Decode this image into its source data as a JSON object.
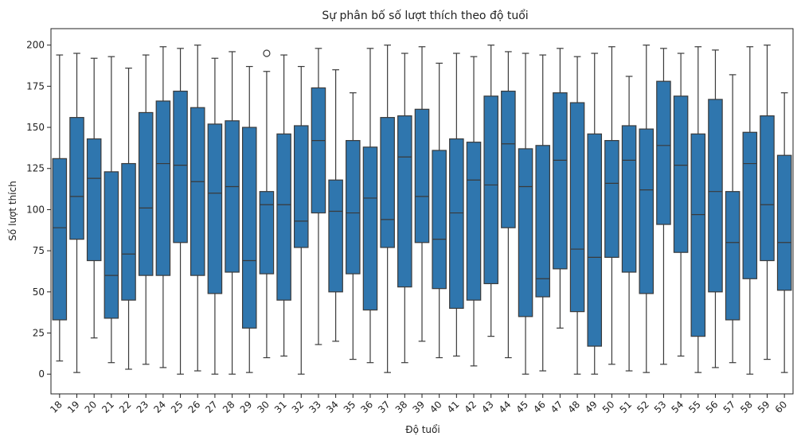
{
  "chart_data": {
    "type": "boxplot",
    "title": "Sự phân bố số lượt thích theo độ tuổi",
    "xlabel": "Độ tuổi",
    "ylabel": "Số lượt thích",
    "ylim": [
      -12,
      210
    ],
    "yticks": [
      0,
      25,
      50,
      75,
      100,
      125,
      150,
      175,
      200
    ],
    "grid": false,
    "box_color": "#2f76ae",
    "line_color": "#3a3a3a",
    "categories": [
      "18",
      "19",
      "20",
      "21",
      "22",
      "23",
      "24",
      "25",
      "26",
      "27",
      "28",
      "29",
      "30",
      "31",
      "32",
      "33",
      "34",
      "35",
      "36",
      "37",
      "38",
      "39",
      "40",
      "41",
      "42",
      "43",
      "44",
      "45",
      "46",
      "47",
      "48",
      "49",
      "50",
      "51",
      "52",
      "53",
      "54",
      "55",
      "56",
      "57",
      "58",
      "59",
      "60"
    ],
    "boxes": [
      {
        "whislo": 8,
        "q1": 33,
        "med": 89,
        "q3": 131,
        "whishi": 194,
        "fliers": []
      },
      {
        "whislo": 1,
        "q1": 82,
        "med": 108,
        "q3": 156,
        "whishi": 195,
        "fliers": []
      },
      {
        "whislo": 22,
        "q1": 69,
        "med": 119,
        "q3": 143,
        "whishi": 192,
        "fliers": []
      },
      {
        "whislo": 7,
        "q1": 34,
        "med": 60,
        "q3": 123,
        "whishi": 193,
        "fliers": []
      },
      {
        "whislo": 3,
        "q1": 45,
        "med": 73,
        "q3": 128,
        "whishi": 186,
        "fliers": []
      },
      {
        "whislo": 6,
        "q1": 60,
        "med": 101,
        "q3": 159,
        "whishi": 194,
        "fliers": []
      },
      {
        "whislo": 4,
        "q1": 60,
        "med": 128,
        "q3": 166,
        "whishi": 199,
        "fliers": []
      },
      {
        "whislo": 0,
        "q1": 80,
        "med": 127,
        "q3": 172,
        "whishi": 198,
        "fliers": []
      },
      {
        "whislo": 2,
        "q1": 60,
        "med": 117,
        "q3": 162,
        "whishi": 200,
        "fliers": []
      },
      {
        "whislo": 0,
        "q1": 49,
        "med": 110,
        "q3": 152,
        "whishi": 192,
        "fliers": []
      },
      {
        "whislo": 0,
        "q1": 62,
        "med": 114,
        "q3": 154,
        "whishi": 196,
        "fliers": []
      },
      {
        "whislo": 1,
        "q1": 28,
        "med": 69,
        "q3": 150,
        "whishi": 187,
        "fliers": []
      },
      {
        "whislo": 10,
        "q1": 61,
        "med": 103,
        "q3": 111,
        "whishi": 184,
        "fliers": [
          195
        ]
      },
      {
        "whislo": 11,
        "q1": 45,
        "med": 103,
        "q3": 146,
        "whishi": 194,
        "fliers": []
      },
      {
        "whislo": 0,
        "q1": 77,
        "med": 93,
        "q3": 151,
        "whishi": 187,
        "fliers": []
      },
      {
        "whislo": 18,
        "q1": 98,
        "med": 142,
        "q3": 174,
        "whishi": 198,
        "fliers": []
      },
      {
        "whislo": 20,
        "q1": 50,
        "med": 99,
        "q3": 118,
        "whishi": 185,
        "fliers": []
      },
      {
        "whislo": 9,
        "q1": 61,
        "med": 98,
        "q3": 142,
        "whishi": 171,
        "fliers": []
      },
      {
        "whislo": 7,
        "q1": 39,
        "med": 107,
        "q3": 138,
        "whishi": 198,
        "fliers": []
      },
      {
        "whislo": 1,
        "q1": 77,
        "med": 94,
        "q3": 156,
        "whishi": 200,
        "fliers": []
      },
      {
        "whislo": 7,
        "q1": 53,
        "med": 132,
        "q3": 157,
        "whishi": 195,
        "fliers": []
      },
      {
        "whislo": 20,
        "q1": 80,
        "med": 108,
        "q3": 161,
        "whishi": 199,
        "fliers": []
      },
      {
        "whislo": 10,
        "q1": 52,
        "med": 82,
        "q3": 136,
        "whishi": 189,
        "fliers": []
      },
      {
        "whislo": 11,
        "q1": 40,
        "med": 98,
        "q3": 143,
        "whishi": 195,
        "fliers": []
      },
      {
        "whislo": 5,
        "q1": 45,
        "med": 118,
        "q3": 141,
        "whishi": 193,
        "fliers": []
      },
      {
        "whislo": 23,
        "q1": 55,
        "med": 115,
        "q3": 169,
        "whishi": 200,
        "fliers": []
      },
      {
        "whislo": 10,
        "q1": 89,
        "med": 140,
        "q3": 172,
        "whishi": 196,
        "fliers": []
      },
      {
        "whislo": 0,
        "q1": 35,
        "med": 114,
        "q3": 137,
        "whishi": 195,
        "fliers": []
      },
      {
        "whislo": 2,
        "q1": 47,
        "med": 58,
        "q3": 139,
        "whishi": 194,
        "fliers": []
      },
      {
        "whislo": 28,
        "q1": 64,
        "med": 130,
        "q3": 171,
        "whishi": 198,
        "fliers": []
      },
      {
        "whislo": 0,
        "q1": 38,
        "med": 76,
        "q3": 165,
        "whishi": 193,
        "fliers": []
      },
      {
        "whislo": 0,
        "q1": 17,
        "med": 71,
        "q3": 146,
        "whishi": 195,
        "fliers": []
      },
      {
        "whislo": 6,
        "q1": 71,
        "med": 116,
        "q3": 142,
        "whishi": 199,
        "fliers": []
      },
      {
        "whislo": 2,
        "q1": 62,
        "med": 130,
        "q3": 151,
        "whishi": 181,
        "fliers": []
      },
      {
        "whislo": 1,
        "q1": 49,
        "med": 112,
        "q3": 149,
        "whishi": 200,
        "fliers": []
      },
      {
        "whislo": 6,
        "q1": 91,
        "med": 139,
        "q3": 178,
        "whishi": 198,
        "fliers": []
      },
      {
        "whislo": 11,
        "q1": 74,
        "med": 127,
        "q3": 169,
        "whishi": 195,
        "fliers": []
      },
      {
        "whislo": 1,
        "q1": 23,
        "med": 97,
        "q3": 146,
        "whishi": 199,
        "fliers": []
      },
      {
        "whislo": 4,
        "q1": 50,
        "med": 111,
        "q3": 167,
        "whishi": 197,
        "fliers": []
      },
      {
        "whislo": 7,
        "q1": 33,
        "med": 80,
        "q3": 111,
        "whishi": 182,
        "fliers": []
      },
      {
        "whislo": 0,
        "q1": 58,
        "med": 128,
        "q3": 147,
        "whishi": 199,
        "fliers": []
      },
      {
        "whislo": 9,
        "q1": 69,
        "med": 103,
        "q3": 157,
        "whishi": 200,
        "fliers": []
      },
      {
        "whislo": 1,
        "q1": 51,
        "med": 80,
        "q3": 133,
        "whishi": 171,
        "fliers": []
      }
    ]
  }
}
